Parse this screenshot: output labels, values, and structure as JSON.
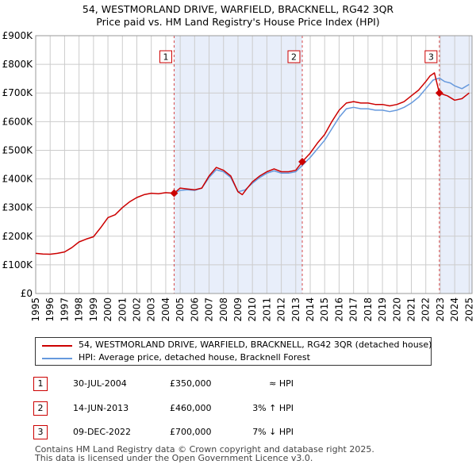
{
  "title": {
    "line1": "54, WESTMORLAND DRIVE, WARFIELD, BRACKNELL, RG42 3QR",
    "line2": "Price paid vs. HM Land Registry's House Price Index (HPI)"
  },
  "legend": {
    "property_label": "54, WESTMORLAND DRIVE, WARFIELD, BRACKNELL, RG42 3QR (detached house)",
    "hpi_label": "HPI: Average price, detached house, Bracknell Forest"
  },
  "transactions": [
    {
      "num": "1",
      "date": "30-JUL-2004",
      "price": "£350,000",
      "hpi": "≈ HPI"
    },
    {
      "num": "2",
      "date": "14-JUN-2013",
      "price": "£460,000",
      "hpi": "3% ↑ HPI"
    },
    {
      "num": "3",
      "date": "09-DEC-2022",
      "price": "£700,000",
      "hpi": "7% ↓ HPI"
    }
  ],
  "footer": {
    "line1": "Contains HM Land Registry data © Crown copyright and database right 2025.",
    "line2": "This data is licensed under the Open Government Licence v3.0."
  },
  "colors": {
    "property": "#cc0000",
    "hpi": "#6699dd",
    "shade": "#e8eefa",
    "grid": "#cccccc"
  },
  "chart_data": {
    "type": "line",
    "title": "Price paid vs. HM Land Registry's House Price Index (HPI)",
    "xlabel": "",
    "ylabel": "",
    "xlim": [
      1995,
      2025.2
    ],
    "ylim": [
      0,
      900000
    ],
    "y_ticks": [
      0,
      100000,
      200000,
      300000,
      400000,
      500000,
      600000,
      700000,
      800000,
      900000
    ],
    "y_tick_labels": [
      "£0",
      "£100K",
      "£200K",
      "£300K",
      "£400K",
      "£500K",
      "£600K",
      "£700K",
      "£800K",
      "£900K"
    ],
    "x_ticks": [
      1995,
      1996,
      1997,
      1998,
      1999,
      2000,
      2001,
      2002,
      2003,
      2004,
      2005,
      2006,
      2007,
      2008,
      2009,
      2010,
      2011,
      2012,
      2013,
      2014,
      2015,
      2016,
      2017,
      2018,
      2019,
      2020,
      2021,
      2022,
      2023,
      2024,
      2025
    ],
    "x_tick_labels": [
      "1995",
      "1996",
      "1997",
      "1998",
      "1999",
      "2000",
      "2001",
      "2002",
      "2003",
      "2004",
      "2005",
      "2006",
      "2007",
      "2008",
      "2009",
      "2010",
      "2011",
      "2012",
      "2013",
      "2014",
      "2015",
      "2016",
      "2017",
      "2018",
      "2019",
      "2020",
      "2021",
      "2022",
      "2023",
      "2024",
      "2025"
    ],
    "grid": true,
    "shaded_ranges": [
      [
        2004.58,
        2013.45
      ],
      [
        2022.94,
        2025.2
      ]
    ],
    "sales": [
      {
        "label": "1",
        "x": 2004.58,
        "y": 350000
      },
      {
        "label": "2",
        "x": 2013.45,
        "y": 460000
      },
      {
        "label": "3",
        "x": 2022.94,
        "y": 700000
      }
    ],
    "series": [
      {
        "name": "54, WESTMORLAND DRIVE, WARFIELD, BRACKNELL, RG42 3QR (detached house)",
        "x": [
          1995,
          1995.5,
          1996,
          1996.5,
          1997,
          1997.5,
          1998,
          1998.5,
          1999,
          1999.5,
          2000,
          2000.5,
          2001,
          2001.5,
          2002,
          2002.5,
          2003,
          2003.5,
          2004,
          2004.58,
          2005,
          2005.5,
          2006,
          2006.5,
          2007,
          2007.5,
          2008,
          2008.5,
          2009,
          2009.3,
          2009.6,
          2010,
          2010.5,
          2011,
          2011.5,
          2012,
          2012.5,
          2013,
          2013.45,
          2014,
          2014.5,
          2015,
          2015.5,
          2016,
          2016.5,
          2017,
          2017.5,
          2018,
          2018.5,
          2019,
          2019.5,
          2020,
          2020.5,
          2021,
          2021.5,
          2022,
          2022.3,
          2022.6,
          2022.94,
          2023.2,
          2023.5,
          2024,
          2024.5,
          2025
        ],
        "values": [
          140000,
          138000,
          137000,
          140000,
          145000,
          160000,
          180000,
          190000,
          198000,
          230000,
          265000,
          275000,
          300000,
          320000,
          335000,
          345000,
          350000,
          348000,
          352000,
          350000,
          368000,
          365000,
          362000,
          368000,
          410000,
          440000,
          430000,
          410000,
          355000,
          345000,
          365000,
          390000,
          410000,
          425000,
          435000,
          425000,
          425000,
          430000,
          460000,
          490000,
          525000,
          555000,
          600000,
          640000,
          665000,
          670000,
          665000,
          665000,
          660000,
          660000,
          655000,
          660000,
          670000,
          690000,
          710000,
          740000,
          760000,
          770000,
          700000,
          695000,
          690000,
          675000,
          680000,
          700000
        ]
      },
      {
        "name": "HPI: Average price, detached house, Bracknell Forest",
        "x": [
          2004.58,
          2005,
          2005.5,
          2006,
          2006.5,
          2007,
          2007.5,
          2008,
          2008.5,
          2009,
          2009.5,
          2010,
          2010.5,
          2011,
          2011.5,
          2012,
          2012.5,
          2013,
          2013.45,
          2014,
          2014.5,
          2015,
          2015.5,
          2016,
          2016.5,
          2017,
          2017.5,
          2018,
          2018.5,
          2019,
          2019.5,
          2020,
          2020.5,
          2021,
          2021.5,
          2022,
          2022.5,
          2022.94,
          2023.3,
          2023.7,
          2024,
          2024.5,
          2025
        ],
        "values": [
          350000,
          360000,
          362000,
          360000,
          368000,
          405000,
          432000,
          425000,
          405000,
          355000,
          362000,
          385000,
          405000,
          420000,
          428000,
          420000,
          420000,
          425000,
          447000,
          475000,
          505000,
          535000,
          575000,
          615000,
          645000,
          650000,
          645000,
          645000,
          640000,
          640000,
          635000,
          640000,
          650000,
          665000,
          685000,
          715000,
          745000,
          752000,
          740000,
          735000,
          725000,
          715000,
          730000
        ]
      }
    ]
  }
}
